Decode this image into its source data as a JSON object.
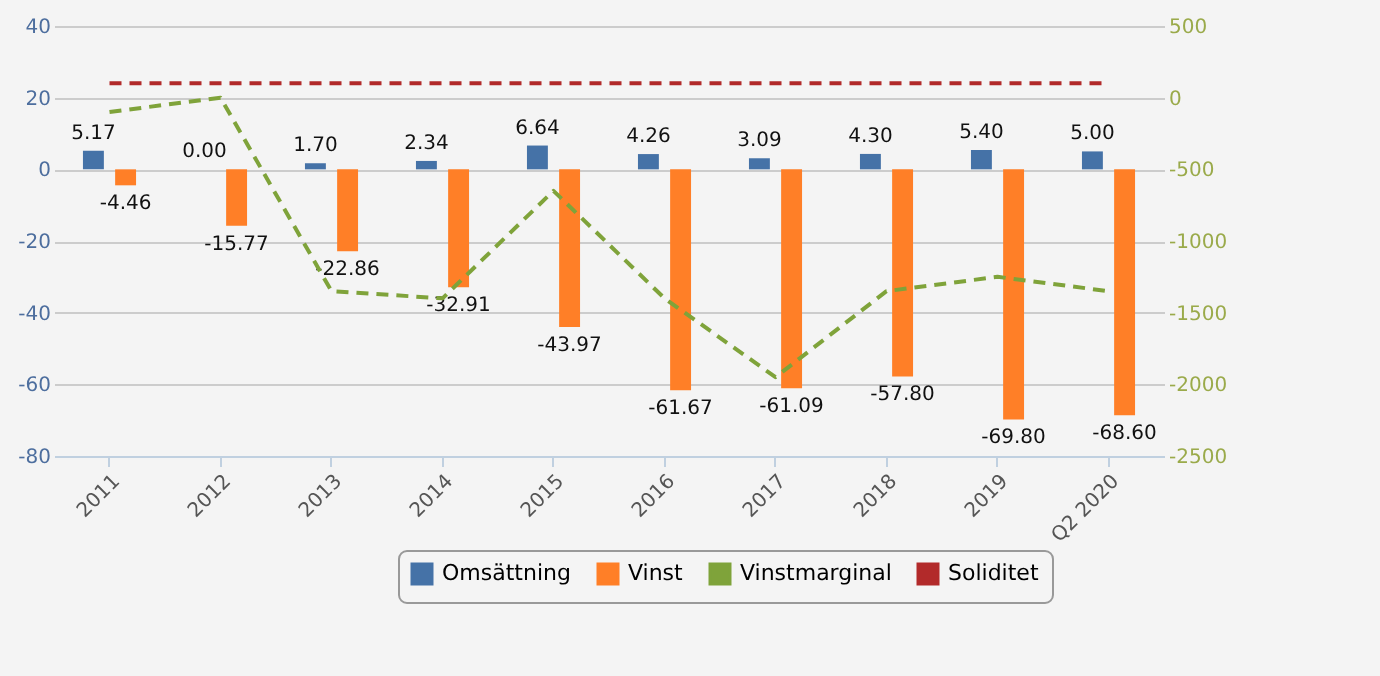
{
  "chart_data": {
    "type": "bar",
    "categories": [
      "2011",
      "2012",
      "2013",
      "2014",
      "2015",
      "2016",
      "2017",
      "2018",
      "2019",
      "Q2 2020"
    ],
    "series": [
      {
        "name": "Omsättning",
        "color": "#4572a7",
        "values": [
          5.17,
          0.0,
          1.7,
          2.34,
          6.64,
          4.26,
          3.09,
          4.3,
          5.4,
          5.0
        ],
        "value_labels": [
          "5.17",
          "0.00",
          "1.70",
          "2.34",
          "6.64",
          "4.26",
          "3.09",
          "4.30",
          "5.40",
          "5.00"
        ]
      },
      {
        "name": "Vinst",
        "color": "#ff7f27",
        "values": [
          -4.46,
          -15.77,
          -22.86,
          -32.91,
          -43.97,
          -61.67,
          -61.09,
          -57.8,
          -69.8,
          -68.6
        ],
        "value_labels": [
          "-4.46",
          "-15.77",
          "-22.86",
          "-32.91",
          "-43.97",
          "-61.67",
          "-61.09",
          "-57.80",
          "-69.80",
          "-68.60"
        ]
      },
      {
        "name": "Vinstmarginal",
        "type": "line",
        "axis": "y2",
        "color": "#7fa33a",
        "line_style": "dashed",
        "values": [
          -100,
          0,
          -1350,
          -1400,
          -650,
          -1400,
          -1950,
          -1350,
          -1250,
          -1350
        ]
      },
      {
        "name": "Soliditet",
        "type": "line",
        "axis": "y2",
        "color": "#b22a2a",
        "line_style": "dashed",
        "values": [
          100,
          100,
          100,
          100,
          100,
          100,
          100,
          100,
          100,
          100
        ]
      }
    ],
    "ylim": [
      -80,
      40
    ],
    "yticks": [
      -80,
      -60,
      -40,
      -20,
      0,
      20,
      40
    ],
    "y2lim": [
      -2500,
      500
    ],
    "y2ticks": [
      -2500,
      -2000,
      -1500,
      -1000,
      -500,
      0,
      500
    ],
    "grid": "y",
    "legend": "bottom"
  }
}
